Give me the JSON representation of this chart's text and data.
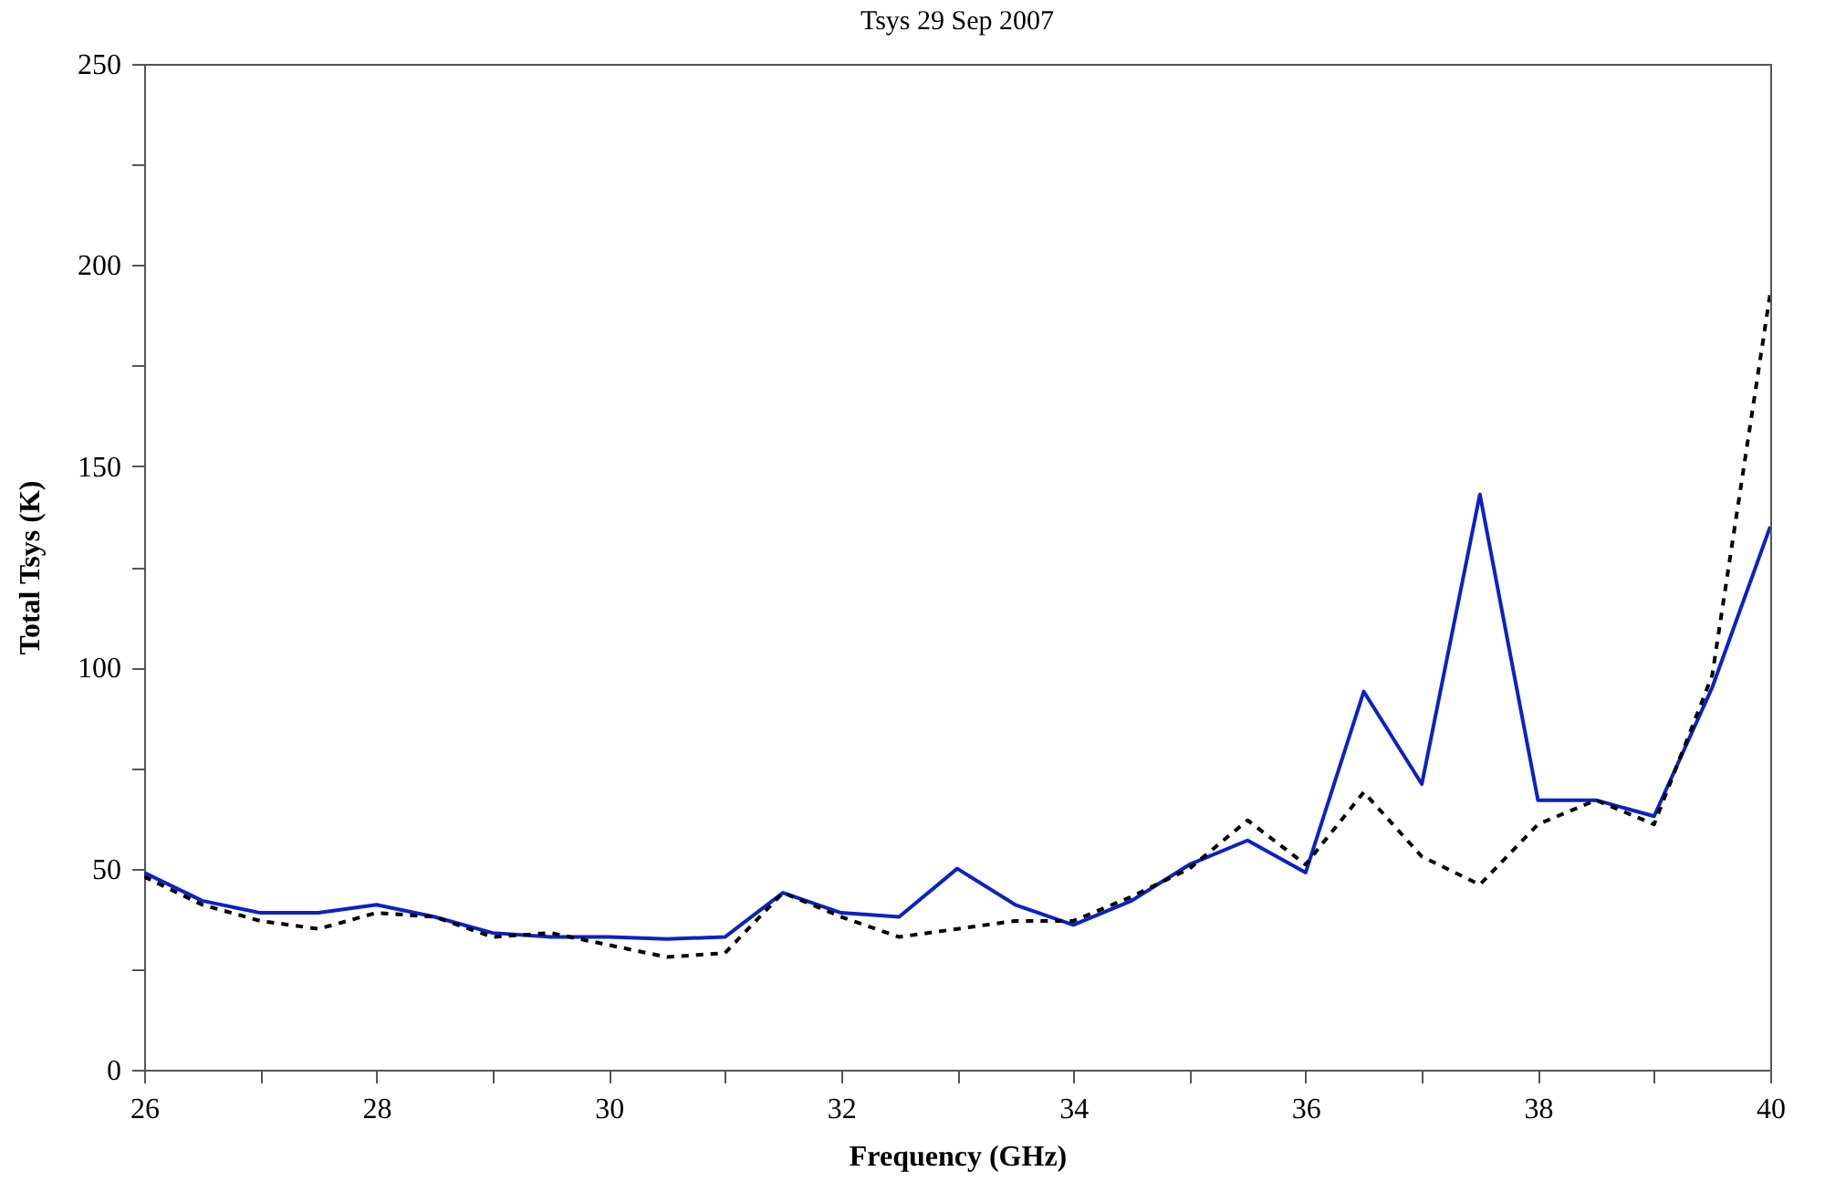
{
  "chart_data": {
    "type": "line",
    "title": "Tsys 29 Sep 2007",
    "xlabel": "Frequency (GHz)",
    "ylabel": "Total Tsys (K)",
    "x": [
      26,
      26.5,
      27,
      27.5,
      28,
      28.5,
      29,
      29.5,
      30,
      30.5,
      31,
      31.5,
      32,
      32.5,
      33,
      33.5,
      34,
      34.5,
      35,
      35.5,
      36,
      36.5,
      37,
      37.5,
      38,
      38.5,
      39,
      39.5,
      40
    ],
    "series": [
      {
        "color": "#0a22c4",
        "line_style": "solid",
        "values": [
          49,
          42,
          39,
          39,
          41,
          38,
          34,
          33,
          33,
          32.5,
          33,
          44,
          39,
          38,
          50,
          41,
          36,
          42,
          51,
          57,
          49,
          94,
          71,
          143,
          67,
          67,
          63,
          95,
          135
        ]
      },
      {
        "color": "#000000",
        "line_style": "dashed",
        "values": [
          48,
          41,
          37,
          35,
          39,
          38,
          33,
          34,
          31,
          28,
          29,
          44,
          38,
          33,
          35,
          37,
          37,
          43,
          50,
          62,
          51,
          69,
          53,
          46,
          61,
          67,
          61,
          98,
          193
        ]
      }
    ],
    "xlim": [
      26,
      40
    ],
    "xticks": [
      26,
      {
        "value": 27,
        "label": null
      },
      28,
      {
        "value": 29,
        "label": null
      },
      30,
      {
        "value": 31,
        "label": null
      },
      32,
      {
        "value": 33,
        "label": null
      },
      34,
      {
        "value": 35,
        "label": null
      },
      36,
      {
        "value": 37,
        "label": null
      },
      38,
      {
        "value": 39,
        "label": null
      },
      40
    ],
    "ylim": [
      0,
      250
    ],
    "yticks": [
      0,
      {
        "value": 25,
        "label": null
      },
      50,
      {
        "value": 75,
        "label": null
      },
      100,
      {
        "value": 125,
        "label": null
      },
      150,
      {
        "value": 175,
        "label": null
      },
      200,
      {
        "value": 225,
        "label": null
      },
      250
    ],
    "grid": false,
    "marker": "none"
  }
}
